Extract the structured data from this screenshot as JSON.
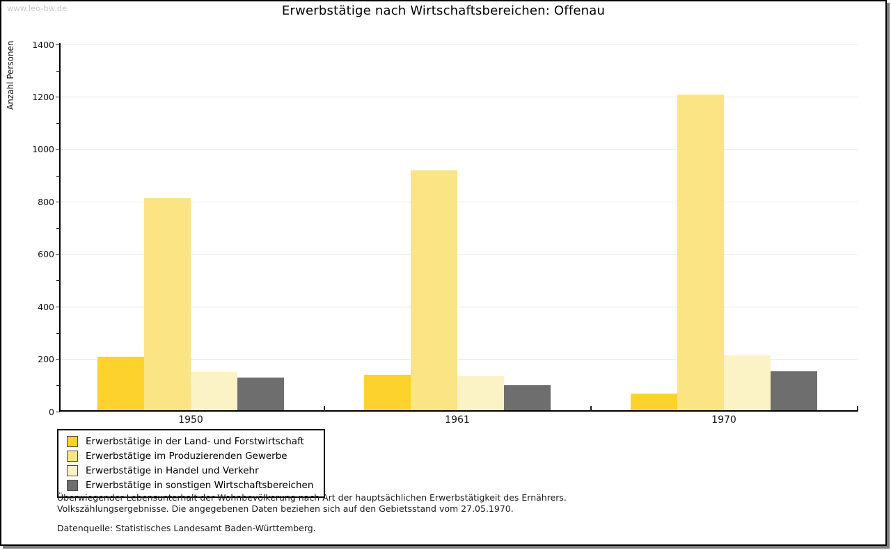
{
  "page": {
    "watermark": "www.leo-bw.de",
    "title": "Erwerbstätige nach Wirtschaftsbereichen: Offenau"
  },
  "chart_data": {
    "type": "bar",
    "title": "Erwerbstätige nach Wirtschaftsbereichen: Offenau",
    "xlabel": "",
    "ylabel": "Anzahl Personen",
    "categories": [
      "1950",
      "1961",
      "1970"
    ],
    "series": [
      {
        "name": "Erwerbstätige in der Land- und Forstwirtschaft",
        "color": "#FCD32D",
        "values": [
          210,
          140,
          70
        ]
      },
      {
        "name": "Erwerbstätige im Produzierenden Gewerbe",
        "color": "#FBE484",
        "values": [
          815,
          920,
          1210
        ]
      },
      {
        "name": "Erwerbstätige in Handel und Verkehr",
        "color": "#FBF2C5",
        "values": [
          150,
          135,
          215
        ]
      },
      {
        "name": "Erwerbstätige in sonstigen Wirtschaftsbereichen",
        "color": "#6E6E6E",
        "values": [
          130,
          100,
          155
        ]
      }
    ],
    "ylim": [
      0,
      1400
    ],
    "ytick_step": 200,
    "yminor_step": 100,
    "grid": "horizontal-major",
    "gridline_color": "#e5e5e5",
    "legend_position": "bottom-left"
  },
  "footnotes": {
    "line1": "Überwiegender Lebensunterhalt der Wohnbevölkerung nach Art der hauptsächlichen Erwerbstätigkeit des Ernährers.",
    "line2": "Volkszählungsergebnisse. Die angegebenen Daten beziehen sich auf den Gebietsstand vom 27.05.1970.",
    "source": "Datenquelle: Statistisches Landesamt Baden-Württemberg."
  }
}
